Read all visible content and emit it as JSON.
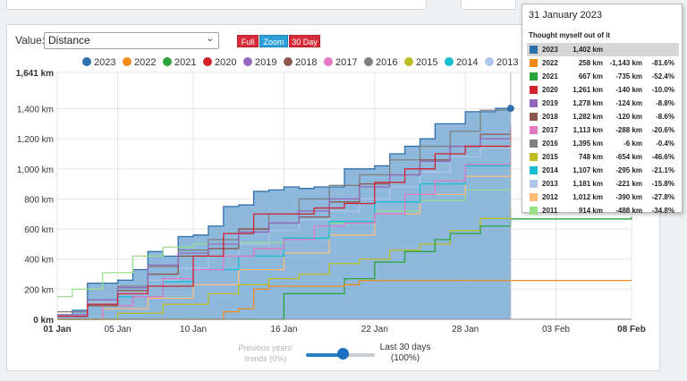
{
  "controls": {
    "value_label": "Value:",
    "value_selected": "Distance",
    "buttons": {
      "full": "Full",
      "zoom": "Zoom",
      "last30": "30 Day"
    },
    "trend_left_line1": "Previous years'",
    "trend_left_line2": "trends (0%)",
    "trend_right_line1": "Last 30 days",
    "trend_right_line2": "(100%)",
    "trend_slider_value": 0.53
  },
  "tooltip": {
    "date": "31 January 2023",
    "note": "Thought myself out of it",
    "rows": [
      {
        "year": "2023",
        "km": "1,402 km",
        "diff": "",
        "pct": "",
        "color": "#2e6fae"
      },
      {
        "year": "2022",
        "km": "258 km",
        "diff": "-1,143 km",
        "pct": "-81.6%",
        "color": "#f28a1a"
      },
      {
        "year": "2021",
        "km": "667 km",
        "diff": "-735 km",
        "pct": "-52.4%",
        "color": "#2aa33a"
      },
      {
        "year": "2020",
        "km": "1,261 km",
        "diff": "-140 km",
        "pct": "-10.0%",
        "color": "#d2222d"
      },
      {
        "year": "2019",
        "km": "1,278 km",
        "diff": "-124 km",
        "pct": "-8.8%",
        "color": "#9469bd"
      },
      {
        "year": "2018",
        "km": "1,282 km",
        "diff": "-120 km",
        "pct": "-8.6%",
        "color": "#8c5649"
      },
      {
        "year": "2017",
        "km": "1,113 km",
        "diff": "-288 km",
        "pct": "-20.6%",
        "color": "#e377c2"
      },
      {
        "year": "2016",
        "km": "1,395 km",
        "diff": "-6 km",
        "pct": "-0.4%",
        "color": "#7f7f7f"
      },
      {
        "year": "2015",
        "km": "748 km",
        "diff": "-654 km",
        "pct": "-46.6%",
        "color": "#bcbd22"
      },
      {
        "year": "2014",
        "km": "1,107 km",
        "diff": "-295 km",
        "pct": "-21.1%",
        "color": "#17becf"
      },
      {
        "year": "2013",
        "km": "1,181 km",
        "diff": "-221 km",
        "pct": "-15.8%",
        "color": "#aec7e8"
      },
      {
        "year": "2012",
        "km": "1,012 km",
        "diff": "-390 km",
        "pct": "-27.8%",
        "color": "#ffbb78"
      },
      {
        "year": "2011",
        "km": "914 km",
        "diff": "-488 km",
        "pct": "-34.8%",
        "color": "#98df8a"
      }
    ]
  },
  "chart_data": {
    "type": "line",
    "title": "",
    "xlabel": "",
    "ylabel": "",
    "x_tick_labels": [
      "01 Jan",
      "05 Jan",
      "10 Jan",
      "16 Jan",
      "22 Jan",
      "28 Jan",
      "03 Feb",
      "08 Feb"
    ],
    "x_tick_days": [
      1,
      5,
      10,
      16,
      22,
      28,
      34,
      39
    ],
    "x_bold_ticks": [
      "01 Jan",
      "08 Feb"
    ],
    "xlim_days": [
      1,
      39
    ],
    "y_tick_labels": [
      "0 km",
      "200 km",
      "400 km",
      "600 km",
      "800 km",
      "1,000 km",
      "1,200 km",
      "1,400 km",
      "1,641 km"
    ],
    "y_tick_values": [
      0,
      200,
      400,
      600,
      800,
      1000,
      1200,
      1400,
      1641
    ],
    "y_bold_ticks": [
      "0 km",
      "1,641 km"
    ],
    "ylim": [
      0,
      1641
    ],
    "grid": true,
    "legend_position": "top",
    "series": [
      {
        "name": "2023",
        "color": "#2e6fae",
        "fill": "#7aabd6",
        "filled": true,
        "x": [
          1,
          2,
          3,
          4,
          5,
          6,
          7,
          8,
          9,
          10,
          11,
          12,
          13,
          14,
          15,
          16,
          17,
          18,
          19,
          20,
          21,
          22,
          23,
          24,
          25,
          26,
          27,
          28,
          29,
          30,
          31
        ],
        "y": [
          30,
          60,
          240,
          240,
          260,
          330,
          450,
          420,
          550,
          560,
          620,
          750,
          760,
          850,
          860,
          880,
          870,
          880,
          880,
          1000,
          1000,
          1020,
          1100,
          1150,
          1200,
          1300,
          1300,
          1380,
          1380,
          1402,
          1402
        ]
      },
      {
        "name": "2022",
        "color": "#f28a1a",
        "filled": false,
        "x": [
          1,
          7,
          8,
          12,
          13,
          14,
          15,
          20,
          21,
          39
        ],
        "y": 0,
        "y_values": [
          0,
          0,
          0,
          50,
          70,
          200,
          220,
          230,
          258,
          258
        ]
      },
      {
        "name": "2021",
        "color": "#2aa33a",
        "filled": false,
        "x": [
          1,
          12,
          16,
          20,
          22,
          24,
          26,
          27,
          29,
          31,
          39
        ],
        "y": [
          0,
          0,
          170,
          270,
          380,
          450,
          530,
          570,
          620,
          667,
          680
        ]
      },
      {
        "name": "2020",
        "color": "#d2222d",
        "filled": false,
        "x": [
          1,
          3,
          5,
          7,
          10,
          12,
          14,
          16,
          18,
          20,
          22,
          24,
          26,
          28,
          31
        ],
        "y": [
          20,
          100,
          170,
          220,
          420,
          570,
          700,
          700,
          740,
          770,
          910,
          1000,
          1100,
          1150,
          1261
        ]
      },
      {
        "name": "2019",
        "color": "#9469bd",
        "filled": false,
        "x": [
          1,
          3,
          5,
          7,
          9,
          11,
          13,
          15,
          17,
          19,
          21,
          23,
          25,
          27,
          29,
          31
        ],
        "y": [
          30,
          130,
          210,
          360,
          440,
          500,
          580,
          640,
          720,
          800,
          880,
          960,
          1050,
          1150,
          1200,
          1278
        ]
      },
      {
        "name": "2018",
        "color": "#8c5649",
        "filled": false,
        "x": [
          1,
          3,
          5,
          7,
          9,
          11,
          13,
          15,
          17,
          19,
          21,
          23,
          25,
          27,
          29,
          31
        ],
        "y": [
          20,
          90,
          190,
          300,
          420,
          470,
          600,
          640,
          680,
          780,
          900,
          960,
          1060,
          1150,
          1230,
          1282
        ]
      },
      {
        "name": "2017",
        "color": "#e377c2",
        "filled": false,
        "x": [
          1,
          4,
          6,
          8,
          10,
          12,
          14,
          16,
          18,
          20,
          22,
          24,
          26,
          28,
          31
        ],
        "y": [
          0,
          90,
          150,
          270,
          330,
          420,
          470,
          530,
          620,
          640,
          700,
          830,
          920,
          1030,
          1113
        ]
      },
      {
        "name": "2016",
        "color": "#7f7f7f",
        "filled": false,
        "x": [
          1,
          3,
          5,
          7,
          9,
          11,
          13,
          15,
          17,
          19,
          21,
          23,
          25,
          27,
          29,
          31
        ],
        "y": [
          50,
          130,
          220,
          350,
          460,
          530,
          600,
          700,
          800,
          890,
          960,
          1060,
          1150,
          1250,
          1390,
          1395
        ]
      },
      {
        "name": "2015",
        "color": "#bcbd22",
        "filled": false,
        "x": [
          1,
          5,
          8,
          11,
          13,
          15,
          17,
          19,
          21,
          23,
          25,
          27,
          29,
          31
        ],
        "y": [
          0,
          40,
          100,
          170,
          230,
          270,
          300,
          370,
          400,
          460,
          500,
          590,
          670,
          748
        ]
      },
      {
        "name": "2014",
        "color": "#17becf",
        "filled": false,
        "x": [
          1,
          3,
          5,
          8,
          10,
          13,
          16,
          19,
          22,
          25,
          28,
          31
        ],
        "y": [
          20,
          90,
          150,
          250,
          330,
          420,
          540,
          650,
          780,
          900,
          1020,
          1107
        ]
      },
      {
        "name": "2013",
        "color": "#aec7e8",
        "filled": false,
        "x": [
          1,
          3,
          5,
          7,
          9,
          11,
          13,
          15,
          17,
          19,
          21,
          23,
          25,
          27,
          29,
          31
        ],
        "y": [
          30,
          110,
          180,
          260,
          340,
          420,
          500,
          590,
          660,
          720,
          800,
          880,
          980,
          1080,
          1140,
          1181
        ]
      },
      {
        "name": "2012",
        "color": "#ffbb78",
        "filled": false,
        "x": [
          1,
          4,
          7,
          10,
          13,
          16,
          19,
          22,
          25,
          28,
          31
        ],
        "y": [
          0,
          70,
          140,
          230,
          330,
          440,
          560,
          700,
          830,
          950,
          1012
        ]
      },
      {
        "name": "2011",
        "color": "#98df8a",
        "filled": false,
        "x": [
          1,
          2,
          4,
          6,
          8,
          10,
          13,
          16,
          19,
          22,
          25,
          28,
          31
        ],
        "y": [
          150,
          200,
          310,
          420,
          480,
          500,
          510,
          540,
          640,
          720,
          790,
          860,
          914
        ]
      }
    ],
    "marker": {
      "series": "2023",
      "day": 31,
      "value": 1402
    },
    "vertical_line_day": 31,
    "legend_visible": [
      "2023",
      "2022",
      "2021",
      "2020",
      "2019",
      "2018",
      "2017",
      "2016",
      "2015",
      "2014",
      "2013"
    ]
  }
}
